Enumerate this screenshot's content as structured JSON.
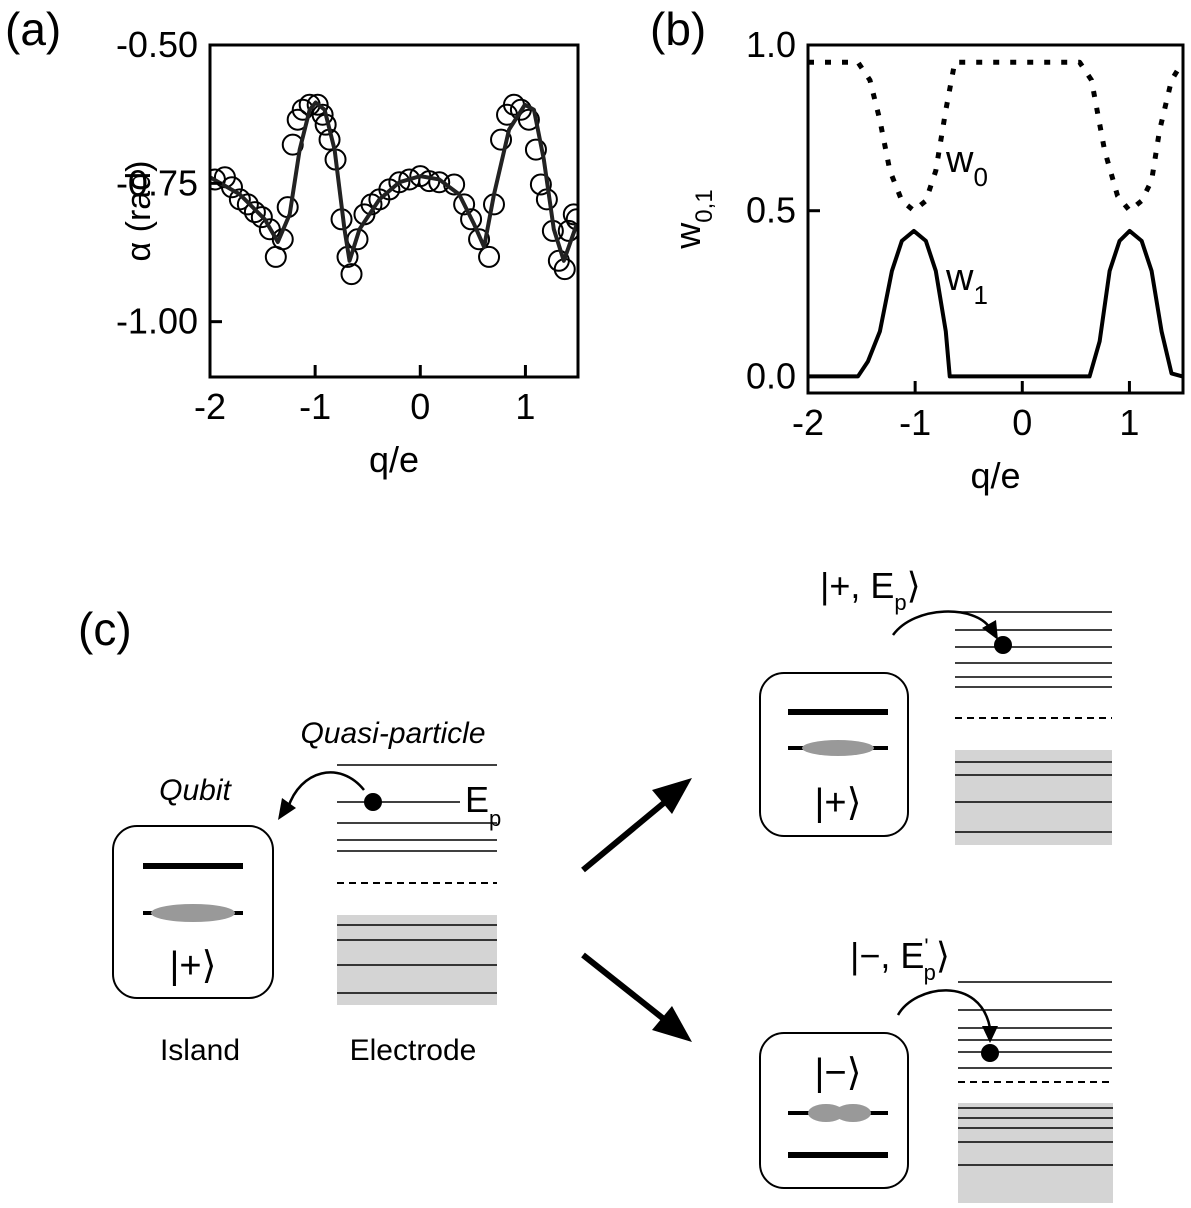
{
  "chart_data": [
    {
      "type": "line",
      "panel_label": "(a)",
      "xlabel": "q/e",
      "ylabel": "α (rad)",
      "xlim": [
        -2,
        1.5
      ],
      "xticks": [
        -2,
        -1,
        0,
        1
      ],
      "ylim": [
        -1.1,
        -0.5
      ],
      "yticks": [
        {
          "value": -0.5,
          "label": "-0.50"
        },
        -0.75,
        {
          "value": -1.0,
          "label": "-1.00"
        }
      ],
      "series": [
        {
          "color": "#000000",
          "marker": "circle",
          "linestyle": "none",
          "x": [
            -1.953,
            -1.858,
            -1.791,
            -1.716,
            -1.64,
            -1.573,
            -1.507,
            -1.431,
            -1.374,
            -1.308,
            -1.261,
            -1.213,
            -1.166,
            -1.118,
            -1.052,
            -0.976,
            -0.929,
            -0.9,
            -0.863,
            -0.806,
            -0.749,
            -0.692,
            -0.654,
            -0.597,
            -0.531,
            -0.464,
            -0.389,
            -0.294,
            -0.199,
            -0.104,
            0,
            0.085,
            0.18,
            0.322,
            0.417,
            0.483,
            0.559,
            0.654,
            0.701,
            0.768,
            0.825,
            0.891,
            0.957,
            1.033,
            1.1,
            1.147,
            1.204,
            1.261,
            1.318,
            1.374,
            1.412,
            1.46,
            1.488
          ],
          "values": [
            -0.743,
            -0.739,
            -0.757,
            -0.779,
            -0.788,
            -0.802,
            -0.811,
            -0.833,
            -0.883,
            -0.851,
            -0.793,
            -0.68,
            -0.635,
            -0.617,
            -0.608,
            -0.608,
            -0.626,
            -0.644,
            -0.671,
            -0.707,
            -0.815,
            -0.883,
            -0.914,
            -0.851,
            -0.806,
            -0.788,
            -0.779,
            -0.761,
            -0.748,
            -0.743,
            -0.737,
            -0.746,
            -0.748,
            -0.752,
            -0.788,
            -0.815,
            -0.851,
            -0.883,
            -0.788,
            -0.671,
            -0.626,
            -0.608,
            -0.617,
            -0.635,
            -0.689,
            -0.752,
            -0.779,
            -0.836,
            -0.89,
            -0.905,
            -0.836,
            -0.806,
            -0.815
          ]
        },
        {
          "color": "#222222",
          "marker": "none",
          "linestyle": "solid",
          "x": [
            -2,
            -1.716,
            -1.479,
            -1.355,
            -1.242,
            -1.147,
            -1.052,
            -0.995,
            -0.91,
            -0.815,
            -0.721,
            -0.673,
            -0.578,
            -0.389,
            -0.199,
            0,
            0.18,
            0.37,
            0.512,
            0.607,
            0.701,
            0.844,
            0.995,
            1.081,
            1.175,
            1.27,
            1.365,
            1.488
          ],
          "values": [
            -0.739,
            -0.77,
            -0.815,
            -0.856,
            -0.806,
            -0.689,
            -0.617,
            -0.604,
            -0.617,
            -0.689,
            -0.833,
            -0.89,
            -0.833,
            -0.779,
            -0.748,
            -0.737,
            -0.743,
            -0.77,
            -0.824,
            -0.865,
            -0.77,
            -0.653,
            -0.608,
            -0.617,
            -0.707,
            -0.833,
            -0.89,
            -0.824
          ]
        }
      ]
    },
    {
      "type": "line",
      "panel_label": "(b)",
      "xlabel": "q/e",
      "ylabel": {
        "text": "w",
        "sub": "0,1"
      },
      "xlim": [
        -2,
        1.5
      ],
      "xticks": [
        -2,
        -1,
        0,
        1
      ],
      "ylim": [
        -0.05,
        1.0
      ],
      "yticks": [
        {
          "value": 0,
          "label": "0.0"
        },
        {
          "value": 0.5,
          "label": "0.5"
        },
        {
          "value": 1,
          "label": "1.0"
        }
      ],
      "annotations": [
        {
          "text": "w",
          "sub": "0"
        },
        {
          "text": "w",
          "sub": "1"
        }
      ],
      "series": [
        {
          "color": "#000000",
          "marker": "none",
          "linestyle": "dotted",
          "x": [
            -2,
            -1.534,
            -1.422,
            -1.329,
            -1.236,
            -1.124,
            -1.012,
            -0.9,
            -0.807,
            -0.714,
            -0.63,
            0.535,
            0.646,
            0.768,
            0.889,
            1.002,
            1.114,
            1.207,
            1.281,
            1.393,
            1.495
          ],
          "values": [
            0.948,
            0.948,
            0.894,
            0.773,
            0.621,
            0.53,
            0.5,
            0.53,
            0.621,
            0.803,
            0.948,
            0.948,
            0.894,
            0.682,
            0.545,
            0.5,
            0.53,
            0.591,
            0.742,
            0.894,
            0.948
          ]
        },
        {
          "color": "#000000",
          "marker": "none",
          "linestyle": "solid",
          "x": [
            -2,
            -1.534,
            -1.441,
            -1.329,
            -1.217,
            -1.124,
            -1.012,
            -0.9,
            -0.807,
            -0.714,
            -0.677,
            0.628,
            0.722,
            0.815,
            0.908,
            1.002,
            1.114,
            1.207,
            1.3,
            1.393,
            1.495
          ],
          "values": [
            0,
            0,
            0.045,
            0.136,
            0.318,
            0.409,
            0.439,
            0.409,
            0.318,
            0.136,
            0,
            0,
            0.106,
            0.318,
            0.409,
            0.439,
            0.409,
            0.318,
            0.136,
            0.009,
            0
          ]
        }
      ]
    }
  ],
  "diagram": {
    "panel_label": "(c)",
    "initial": {
      "qubit_label": "Qubit",
      "particle_label": "Quasi-particle",
      "energy": {
        "text": "E",
        "sub": "p"
      },
      "state": "|+⟩",
      "island_label": "Island",
      "electrode_label": "Electrode"
    },
    "outcome_plus": {
      "ket": {
        "pre": "|+, E",
        "sub": "p",
        "post": "⟩"
      },
      "state": "|+⟩"
    },
    "outcome_minus": {
      "ket": {
        "pre": "|−, E",
        "sup": "'",
        "sub": "p",
        "post": "⟩"
      },
      "state": "|−⟩"
    }
  }
}
